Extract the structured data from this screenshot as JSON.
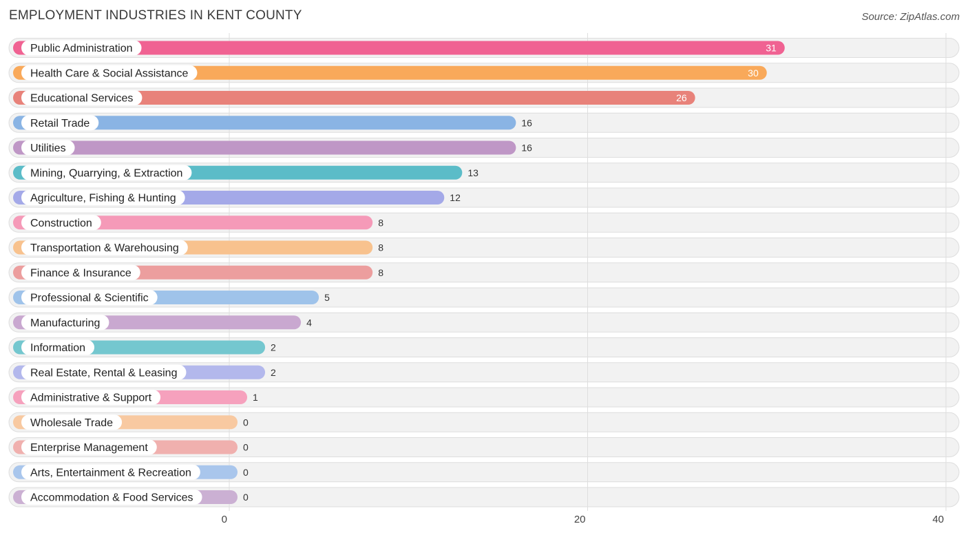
{
  "title": "EMPLOYMENT INDUSTRIES IN KENT COUNTY",
  "source": "Source: ZipAtlas.com",
  "chart_data": {
    "type": "bar",
    "orientation": "horizontal",
    "title": "EMPLOYMENT INDUSTRIES IN KENT COUNTY",
    "xlim": [
      0,
      40
    ],
    "xticks": [
      0,
      20,
      40
    ],
    "grid": true,
    "categories": [
      "Public Administration",
      "Health Care & Social Assistance",
      "Educational Services",
      "Retail Trade",
      "Utilities",
      "Mining, Quarrying, & Extraction",
      "Agriculture, Fishing & Hunting",
      "Construction",
      "Transportation & Warehousing",
      "Finance & Insurance",
      "Professional & Scientific",
      "Manufacturing",
      "Information",
      "Real Estate, Rental & Leasing",
      "Administrative & Support",
      "Wholesale Trade",
      "Enterprise Management",
      "Arts, Entertainment & Recreation",
      "Accommodation & Food Services"
    ],
    "values": [
      31,
      30,
      26,
      16,
      16,
      13,
      12,
      8,
      8,
      8,
      5,
      4,
      2,
      2,
      1,
      0,
      0,
      0,
      0
    ],
    "colors": [
      "#f06292",
      "#f9a95a",
      "#e8827a",
      "#8ab4e4",
      "#bf97c6",
      "#5bbcc8",
      "#a4a9e8",
      "#f59ab8",
      "#f8c28e",
      "#ec9e9e",
      "#9fc3ea",
      "#c9a8d0",
      "#74c7cf",
      "#b3b8ec",
      "#f6a1bd",
      "#f8c9a1",
      "#f0b0ae",
      "#a9c6ec",
      "#cbb0d3"
    ]
  }
}
